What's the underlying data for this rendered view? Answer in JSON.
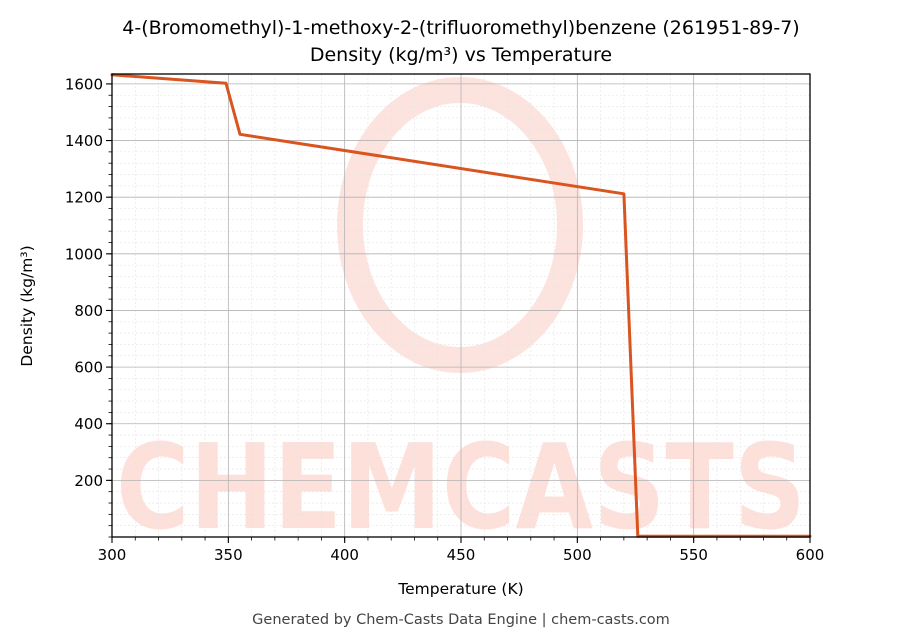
{
  "chart_data": {
    "type": "line",
    "title": "4-(Bromomethyl)-1-methoxy-2-(trifluoromethyl)benzene (261951-89-7)",
    "subtitle": "Density (kg/m³) vs Temperature",
    "xlabel": "Temperature (K)",
    "ylabel": "Density (kg/m³)",
    "xlim": [
      300,
      600
    ],
    "ylim": [
      0,
      1635
    ],
    "x_ticks": [
      300,
      350,
      400,
      450,
      500,
      550,
      600
    ],
    "y_ticks": [
      200,
      400,
      600,
      800,
      1000,
      1200,
      1400,
      1600
    ],
    "grid": true,
    "series": [
      {
        "color": "#d9541e",
        "x": [
          300,
          349,
          355,
          520,
          526,
          600
        ],
        "values": [
          1632,
          1602,
          1422,
          1212,
          3,
          3
        ]
      }
    ]
  },
  "watermark": {
    "text": "CHEMCASTS",
    "color": "#fde0da"
  },
  "footer": "Generated by Chem-Casts Data Engine | chem-casts.com"
}
